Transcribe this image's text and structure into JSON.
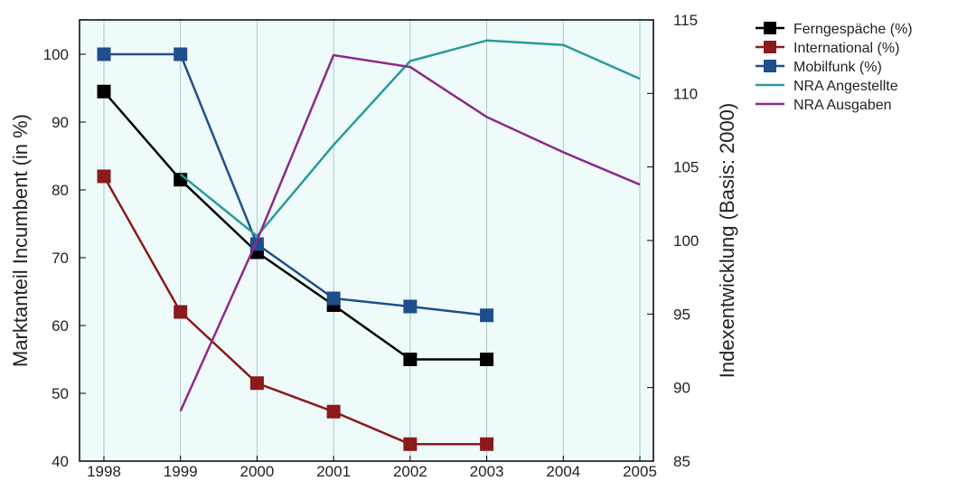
{
  "chart_data": {
    "type": "line",
    "x": [
      "1998",
      "1999",
      "2000",
      "2001",
      "2002",
      "2003",
      "2004",
      "2005"
    ],
    "ylabel": "Marktanteil Incumbent (in %)",
    "y2label": "Indexentwicklung (Basis: 2000)",
    "ylim": [
      40,
      105
    ],
    "y2lim": [
      85,
      115
    ],
    "yticks": [
      40,
      50,
      60,
      70,
      80,
      90,
      100
    ],
    "y2ticks": [
      85,
      90,
      95,
      100,
      105,
      110,
      115
    ],
    "grid": "vertical",
    "legend_position": "right",
    "plot_background": "#effbfb",
    "series": [
      {
        "name": "Ferngespäche (%)",
        "axis": "left",
        "marker": "square",
        "color": "#000000",
        "values": [
          94.5,
          81.5,
          70.8,
          63,
          55,
          55,
          null,
          null
        ]
      },
      {
        "name": "International (%)",
        "axis": "left",
        "marker": "square",
        "color": "#8b1a1a",
        "values": [
          82,
          62,
          51.5,
          47.3,
          42.5,
          42.5,
          null,
          null
        ]
      },
      {
        "name": "Mobilfunk (%)",
        "axis": "left",
        "marker": "square",
        "color": "#1f4e8c",
        "values": [
          100,
          100,
          72,
          64,
          62.8,
          61.5,
          null,
          null
        ]
      },
      {
        "name": "NRA Angestellte",
        "axis": "right",
        "marker": "none",
        "color": "#2a9a9a",
        "values": [
          null,
          104.5,
          100.3,
          106.5,
          112.2,
          113.6,
          113.3,
          111
        ]
      },
      {
        "name": "NRA Ausgaben",
        "axis": "right",
        "marker": "none",
        "color": "#8b2a8b",
        "values": [
          null,
          88.4,
          100,
          112.6,
          111.8,
          108.4,
          106,
          103.8
        ]
      }
    ]
  }
}
